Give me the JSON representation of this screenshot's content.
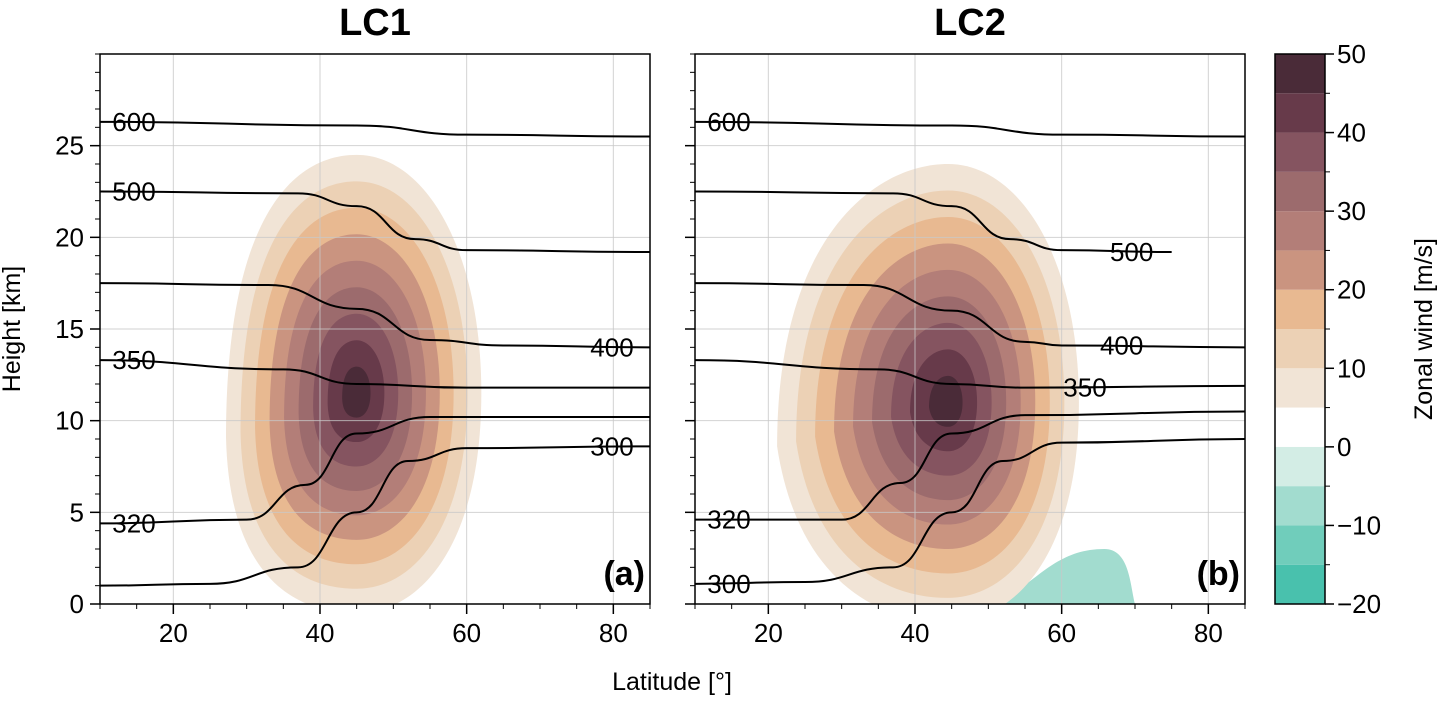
{
  "chart_data": [
    {
      "type": "contour",
      "title": "LC1",
      "panel_label": "(a)",
      "xlabel": "Latitude [°]",
      "ylabel": "Height [km]",
      "xlim": [
        10,
        85
      ],
      "ylim": [
        0,
        30
      ],
      "xticks": [
        20,
        40,
        60,
        80
      ],
      "yticks": [
        0,
        5,
        10,
        15,
        20,
        25
      ],
      "grid": true,
      "filled": {
        "variable": "Zonal wind [m/s]",
        "jet_center": {
          "lat": 45,
          "height_km": 11.5
        },
        "max_level": 45,
        "levels": [
          5,
          10,
          15,
          20,
          25,
          30,
          35,
          40,
          45
        ]
      },
      "contours": {
        "variable": "Potential temperature",
        "lines": [
          {
            "label": "600",
            "points": [
              [
                10,
                26.3
              ],
              [
                45,
                26.1
              ],
              [
                60,
                25.6
              ],
              [
                85,
                25.5
              ]
            ]
          },
          {
            "label": "500",
            "points": [
              [
                10,
                22.5
              ],
              [
                37,
                22.4
              ],
              [
                45,
                21.7
              ],
              [
                53,
                19.9
              ],
              [
                60,
                19.3
              ],
              [
                85,
                19.2
              ]
            ]
          },
          {
            "label": "400",
            "points": [
              [
                10,
                17.5
              ],
              [
                33,
                17.4
              ],
              [
                45,
                16.1
              ],
              [
                55,
                14.4
              ],
              [
                65,
                14.1
              ],
              [
                85,
                14.0
              ]
            ]
          },
          {
            "label": "350",
            "points": [
              [
                10,
                13.3
              ],
              [
                35,
                12.8
              ],
              [
                45,
                12.0
              ],
              [
                60,
                11.8
              ],
              [
                85,
                11.8
              ]
            ]
          },
          {
            "label": "320",
            "points": [
              [
                10,
                4.4
              ],
              [
                30,
                4.6
              ],
              [
                38,
                6.5
              ],
              [
                45,
                9.3
              ],
              [
                55,
                10.2
              ],
              [
                85,
                10.2
              ]
            ]
          },
          {
            "label": "300",
            "points": [
              [
                10,
                1.0
              ],
              [
                25,
                1.1
              ],
              [
                37,
                2.0
              ],
              [
                45,
                5.0
              ],
              [
                52,
                7.8
              ],
              [
                60,
                8.5
              ],
              [
                85,
                8.6
              ]
            ]
          }
        ]
      }
    },
    {
      "type": "contour",
      "title": "LC2",
      "panel_label": "(b)",
      "xlabel": "Latitude [°]",
      "ylabel": "Height [km]",
      "xlim": [
        10,
        85
      ],
      "ylim": [
        0,
        30
      ],
      "xticks": [
        20,
        40,
        60,
        80
      ],
      "yticks": [
        0,
        5,
        10,
        15,
        20,
        25
      ],
      "grid": true,
      "filled": {
        "variable": "Zonal wind [m/s]",
        "jet_center": {
          "lat": 44.5,
          "height_km": 11.0
        },
        "max_level": 45,
        "levels": [
          -5,
          5,
          10,
          15,
          20,
          25,
          30,
          35,
          40,
          45
        ],
        "easterly_region": {
          "lat_range": [
            51,
            70
          ],
          "max_height_km": 3,
          "value_range": [
            -10,
            -5
          ]
        }
      },
      "contours": {
        "variable": "Potential temperature",
        "lines": [
          {
            "label": "600",
            "points": [
              [
                10,
                26.3
              ],
              [
                45,
                26.1
              ],
              [
                60,
                25.6
              ],
              [
                85,
                25.5
              ]
            ]
          },
          {
            "label": "500",
            "points": [
              [
                10,
                22.5
              ],
              [
                37,
                22.4
              ],
              [
                45,
                21.7
              ],
              [
                53,
                19.9
              ],
              [
                60,
                19.3
              ],
              [
                75,
                19.2
              ]
            ]
          },
          {
            "label": "400",
            "points": [
              [
                10,
                17.5
              ],
              [
                33,
                17.4
              ],
              [
                45,
                16.0
              ],
              [
                55,
                14.3
              ],
              [
                60,
                14.1
              ],
              [
                85,
                14.0
              ]
            ]
          },
          {
            "label": "350",
            "points": [
              [
                10,
                13.3
              ],
              [
                35,
                12.8
              ],
              [
                45,
                12.0
              ],
              [
                55,
                11.8
              ],
              [
                85,
                11.9
              ]
            ]
          },
          {
            "label": "320",
            "points": [
              [
                10,
                4.6
              ],
              [
                30,
                4.6
              ],
              [
                38,
                6.6
              ],
              [
                45,
                9.3
              ],
              [
                55,
                10.3
              ],
              [
                85,
                10.5
              ]
            ]
          },
          {
            "label": "300",
            "points": [
              [
                10,
                1.1
              ],
              [
                25,
                1.2
              ],
              [
                37,
                2.0
              ],
              [
                45,
                5.0
              ],
              [
                52,
                7.8
              ],
              [
                60,
                8.8
              ],
              [
                85,
                9.0
              ]
            ]
          }
        ]
      }
    }
  ],
  "colorbar": {
    "label": "Zonal wind [m/s]",
    "ticks": [
      -20,
      -10,
      0,
      10,
      20,
      30,
      40,
      50
    ],
    "range": [
      -20,
      50
    ],
    "bands": [
      {
        "from": -20,
        "to": -15,
        "color": "#49c1ad"
      },
      {
        "from": -15,
        "to": -10,
        "color": "#70cdbb"
      },
      {
        "from": -10,
        "to": -5,
        "color": "#a2dccf"
      },
      {
        "from": -5,
        "to": 0,
        "color": "#d3ede5"
      },
      {
        "from": 0,
        "to": 5,
        "color": "#ffffff"
      },
      {
        "from": 5,
        "to": 10,
        "color": "#f1e4d6"
      },
      {
        "from": 10,
        "to": 15,
        "color": "#ecd1b5"
      },
      {
        "from": 15,
        "to": 20,
        "color": "#e8b991"
      },
      {
        "from": 20,
        "to": 25,
        "color": "#ca9480"
      },
      {
        "from": 25,
        "to": 30,
        "color": "#b37e78"
      },
      {
        "from": 30,
        "to": 35,
        "color": "#9c6b6d"
      },
      {
        "from": 35,
        "to": 40,
        "color": "#855460"
      },
      {
        "from": 40,
        "to": 45,
        "color": "#673a4a"
      },
      {
        "from": 45,
        "to": 50,
        "color": "#4a2b38"
      }
    ]
  },
  "shared_xlabel": "Latitude [°]"
}
